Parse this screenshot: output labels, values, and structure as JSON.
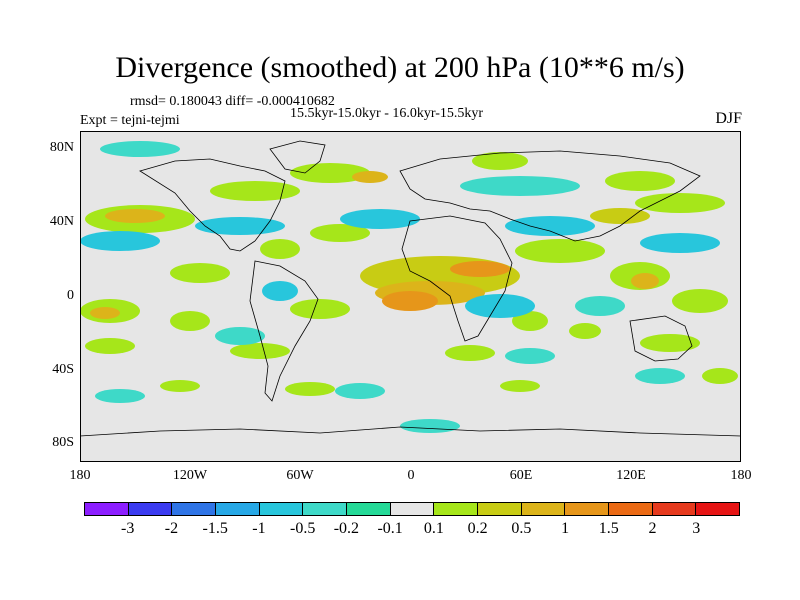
{
  "figure": {
    "title": "Divergence (smoothed) at 200 hPa (10**6 m/s)",
    "stats_line": "rmsd= 0.180043 diff= -0.000410682",
    "periods_line": "15.5kyr-15.0kyr - 16.0kyr-15.5kyr",
    "experiment_line": "Expt = tejni-tejmi",
    "season": "DJF"
  },
  "map": {
    "projection": "cylindrical-equidistant",
    "lon_range": [
      -180,
      180
    ],
    "lat_range": [
      -90,
      90
    ],
    "y_ticks": [
      "80N",
      "40N",
      "0",
      "40S",
      "80S"
    ],
    "x_ticks": [
      "180",
      "120W",
      "60W",
      "0",
      "60E",
      "120E",
      "180"
    ],
    "colors": {
      "frame": "#000000",
      "coast": "#000000",
      "background": "#e6e6e6"
    }
  },
  "colorbar": {
    "labels": [
      "-3",
      "-2",
      "-1.5",
      "-1",
      "-0.5",
      "-0.2",
      "-0.1",
      "0.1",
      "0.2",
      "0.5",
      "1",
      "1.5",
      "2",
      "3"
    ],
    "colors": [
      "#8c1eff",
      "#3b3bf0",
      "#2f74e6",
      "#27a8e6",
      "#28c6dc",
      "#3ed9c8",
      "#25d997",
      "#e6e6e6",
      "#a6e61a",
      "#c8cc14",
      "#dcb41a",
      "#e6961a",
      "#eb6a14",
      "#e63a1e",
      "#e61414"
    ]
  }
}
